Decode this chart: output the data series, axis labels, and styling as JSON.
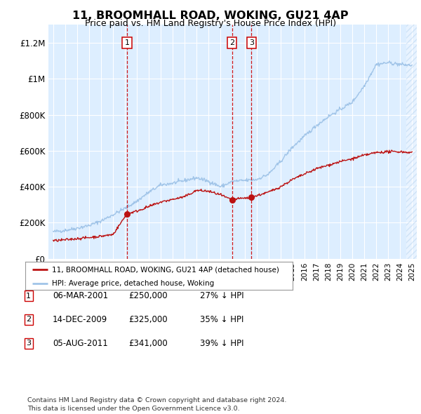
{
  "title": "11, BROOMHALL ROAD, WOKING, GU21 4AP",
  "subtitle": "Price paid vs. HM Land Registry's House Price Index (HPI)",
  "ylim": [
    0,
    1300000
  ],
  "yticks": [
    0,
    200000,
    400000,
    600000,
    800000,
    1000000,
    1200000
  ],
  "ytick_labels": [
    "£0",
    "£200K",
    "£400K",
    "£600K",
    "£800K",
    "£1M",
    "£1.2M"
  ],
  "fig_bg_color": "#f0f0f0",
  "plot_bg_color": "#ddeeff",
  "hpi_color": "#a0c4e8",
  "property_color": "#bb1111",
  "sale_points": [
    {
      "date_x": 2001.17,
      "price": 250000,
      "label": "1"
    },
    {
      "date_x": 2009.95,
      "price": 325000,
      "label": "2"
    },
    {
      "date_x": 2011.58,
      "price": 341000,
      "label": "3"
    }
  ],
  "legend_entries": [
    {
      "label": "11, BROOMHALL ROAD, WOKING, GU21 4AP (detached house)",
      "color": "#bb1111"
    },
    {
      "label": "HPI: Average price, detached house, Woking",
      "color": "#a0c4e8"
    }
  ],
  "table_rows": [
    {
      "num": "1",
      "date": "06-MAR-2001",
      "price": "£250,000",
      "hpi": "27% ↓ HPI"
    },
    {
      "num": "2",
      "date": "14-DEC-2009",
      "price": "£325,000",
      "hpi": "35% ↓ HPI"
    },
    {
      "num": "3",
      "date": "05-AUG-2011",
      "price": "£341,000",
      "hpi": "39% ↓ HPI"
    }
  ],
  "footer": "Contains HM Land Registry data © Crown copyright and database right 2024.\nThis data is licensed under the Open Government Licence v3.0.",
  "xmin": 1994.6,
  "xmax": 2025.4,
  "hpi_anchors": {
    "1995": 150000,
    "1996": 158000,
    "1997": 170000,
    "1998": 185000,
    "1999": 210000,
    "2000": 245000,
    "2001": 280000,
    "2002": 320000,
    "2003": 370000,
    "2004": 410000,
    "2005": 420000,
    "2006": 435000,
    "2007": 450000,
    "2008": 430000,
    "2009": 400000,
    "2010": 430000,
    "2011": 435000,
    "2012": 440000,
    "2013": 470000,
    "2014": 540000,
    "2015": 620000,
    "2016": 680000,
    "2017": 740000,
    "2018": 790000,
    "2019": 830000,
    "2020": 870000,
    "2021": 960000,
    "2022": 1080000,
    "2023": 1090000,
    "2024": 1080000,
    "2025": 1075000
  },
  "prop_anchors": {
    "1995": 100000,
    "1996": 105000,
    "1997": 112000,
    "1998": 118000,
    "1999": 125000,
    "2000": 135000,
    "2001.17": 250000,
    "2002": 265000,
    "2003": 290000,
    "2004": 315000,
    "2005": 330000,
    "2006": 345000,
    "2007": 380000,
    "2008": 375000,
    "2009": 355000,
    "2009.95": 325000,
    "2010": 330000,
    "2011.58": 341000,
    "2012": 350000,
    "2013": 370000,
    "2014": 400000,
    "2015": 440000,
    "2016": 470000,
    "2017": 500000,
    "2018": 520000,
    "2019": 540000,
    "2020": 555000,
    "2021": 575000,
    "2022": 590000,
    "2023": 595000,
    "2024": 595000,
    "2025": 590000
  }
}
